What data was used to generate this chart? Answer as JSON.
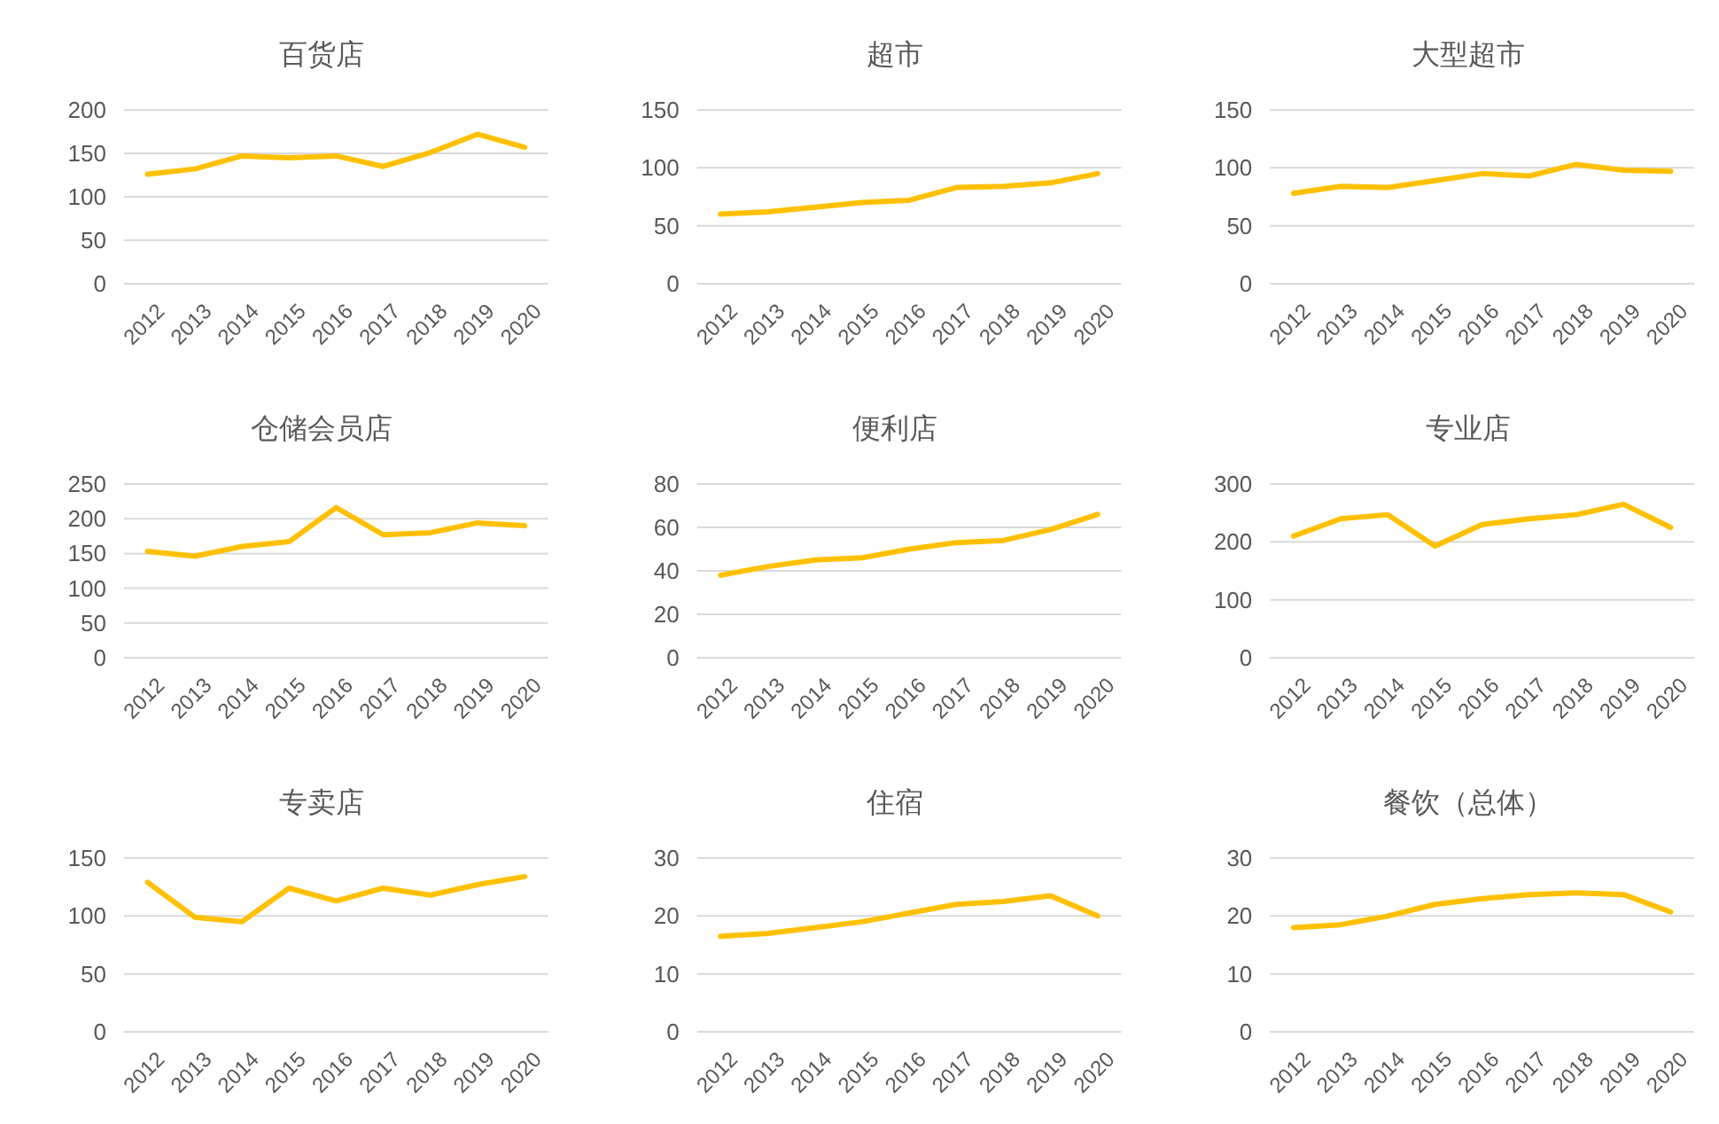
{
  "chart_data": [
    {
      "type": "line",
      "title": "百货店",
      "categories": [
        "2012",
        "2013",
        "2014",
        "2015",
        "2016",
        "2017",
        "2018",
        "2019",
        "2020"
      ],
      "series": [
        {
          "color": "#ffc000",
          "values": [
            126,
            132,
            147,
            145,
            147,
            135,
            151,
            172,
            157
          ]
        }
      ],
      "ylim": [
        0,
        200
      ],
      "yticks": [
        0,
        50,
        100,
        150,
        200
      ],
      "grid": "y",
      "marker": "none"
    },
    {
      "type": "line",
      "title": "超市",
      "categories": [
        "2012",
        "2013",
        "2014",
        "2015",
        "2016",
        "2017",
        "2018",
        "2019",
        "2020"
      ],
      "series": [
        {
          "color": "#ffc000",
          "values": [
            60,
            62,
            66,
            70,
            72,
            83,
            84,
            87,
            95
          ]
        }
      ],
      "ylim": [
        0,
        150
      ],
      "yticks": [
        0,
        50,
        100,
        150
      ],
      "grid": "y",
      "marker": "none"
    },
    {
      "type": "line",
      "title": "大型超市",
      "categories": [
        "2012",
        "2013",
        "2014",
        "2015",
        "2016",
        "2017",
        "2018",
        "2019",
        "2020"
      ],
      "series": [
        {
          "color": "#ffc000",
          "values": [
            78,
            84,
            83,
            89,
            95,
            93,
            103,
            98,
            97
          ]
        }
      ],
      "ylim": [
        0,
        150
      ],
      "yticks": [
        0,
        50,
        100,
        150
      ],
      "grid": "y",
      "marker": "none"
    },
    {
      "type": "line",
      "title": "仓储会员店",
      "categories": [
        "2012",
        "2013",
        "2014",
        "2015",
        "2016",
        "2017",
        "2018",
        "2019",
        "2020"
      ],
      "series": [
        {
          "color": "#ffc000",
          "values": [
            153,
            146,
            160,
            167,
            216,
            177,
            180,
            194,
            190
          ]
        }
      ],
      "ylim": [
        0,
        250
      ],
      "yticks": [
        0,
        50,
        100,
        150,
        200,
        250
      ],
      "grid": "y",
      "marker": "none"
    },
    {
      "type": "line",
      "title": "便利店",
      "categories": [
        "2012",
        "2013",
        "2014",
        "2015",
        "2016",
        "2017",
        "2018",
        "2019",
        "2020"
      ],
      "series": [
        {
          "color": "#ffc000",
          "values": [
            38,
            42,
            45,
            46,
            50,
            53,
            54,
            59,
            66
          ]
        }
      ],
      "ylim": [
        0,
        80
      ],
      "yticks": [
        0,
        20,
        40,
        60,
        80
      ],
      "grid": "y",
      "marker": "none"
    },
    {
      "type": "line",
      "title": "专业店",
      "categories": [
        "2012",
        "2013",
        "2014",
        "2015",
        "2016",
        "2017",
        "2018",
        "2019",
        "2020"
      ],
      "series": [
        {
          "color": "#ffc000",
          "values": [
            210,
            240,
            247,
            193,
            230,
            240,
            247,
            265,
            225
          ]
        }
      ],
      "ylim": [
        0,
        300
      ],
      "yticks": [
        0,
        100,
        200,
        300
      ],
      "grid": "y",
      "marker": "none"
    },
    {
      "type": "line",
      "title": "专卖店",
      "categories": [
        "2012",
        "2013",
        "2014",
        "2015",
        "2016",
        "2017",
        "2018",
        "2019",
        "2020"
      ],
      "series": [
        {
          "color": "#ffc000",
          "values": [
            129,
            99,
            95,
            124,
            113,
            124,
            118,
            127,
            134
          ]
        }
      ],
      "ylim": [
        0,
        150
      ],
      "yticks": [
        0,
        50,
        100,
        150
      ],
      "grid": "y",
      "marker": "none"
    },
    {
      "type": "line",
      "title": "住宿",
      "categories": [
        "2012",
        "2013",
        "2014",
        "2015",
        "2016",
        "2017",
        "2018",
        "2019",
        "2020"
      ],
      "series": [
        {
          "color": "#ffc000",
          "values": [
            16.5,
            17,
            18,
            19,
            20.5,
            22,
            22.5,
            23.5,
            20
          ]
        }
      ],
      "ylim": [
        0,
        30
      ],
      "yticks": [
        0,
        10,
        20,
        30
      ],
      "grid": "y",
      "marker": "none"
    },
    {
      "type": "line",
      "title": "餐饮（总体）",
      "categories": [
        "2012",
        "2013",
        "2014",
        "2015",
        "2016",
        "2017",
        "2018",
        "2019",
        "2020"
      ],
      "series": [
        {
          "color": "#ffc000",
          "values": [
            18,
            18.5,
            20,
            22,
            23,
            23.7,
            24,
            23.7,
            20.7
          ]
        }
      ],
      "ylim": [
        0,
        30
      ],
      "yticks": [
        0,
        10,
        20,
        30
      ],
      "grid": "y",
      "marker": "none"
    }
  ]
}
